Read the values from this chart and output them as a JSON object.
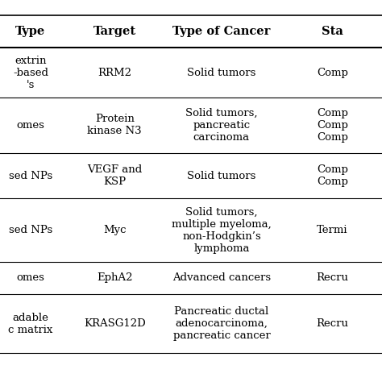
{
  "headers": [
    "Type",
    "Target",
    "Type of Cancer",
    "Sta"
  ],
  "rows": [
    {
      "col0": "extrin\n-based\n's",
      "col1": "RRM2",
      "col2": "Solid tumors",
      "col3": "Comp"
    },
    {
      "col0": "omes",
      "col1": "Protein\nkinase N3",
      "col2": "Solid tumors,\npancreatic\ncarcinoma",
      "col3": "Comp\nComp\nComp"
    },
    {
      "col0": "sed NPs",
      "col1": "VEGF and\nKSP",
      "col2": "Solid tumors",
      "col3": "Comp\nComp"
    },
    {
      "col0": "sed NPs",
      "col1": "Myc",
      "col2": "Solid tumors,\nmultiple myeloma,\nnon-Hodgkin’s\nlymphoma",
      "col3": "Termi"
    },
    {
      "col0": "omes",
      "col1": "EphA2",
      "col2": "Advanced cancers",
      "col3": "Recru"
    },
    {
      "col0": "adable\nc matrix",
      "col1": "KRASG12D",
      "col2": "Pancreatic ductal\nadenocarcinoma,\npancreatic cancer",
      "col3": "Recru"
    }
  ],
  "background_color": "#ffffff",
  "header_line_color": "#000000",
  "row_line_color": "#000000",
  "text_color": "#000000",
  "font_size": 9.5,
  "header_font_size": 10.5
}
